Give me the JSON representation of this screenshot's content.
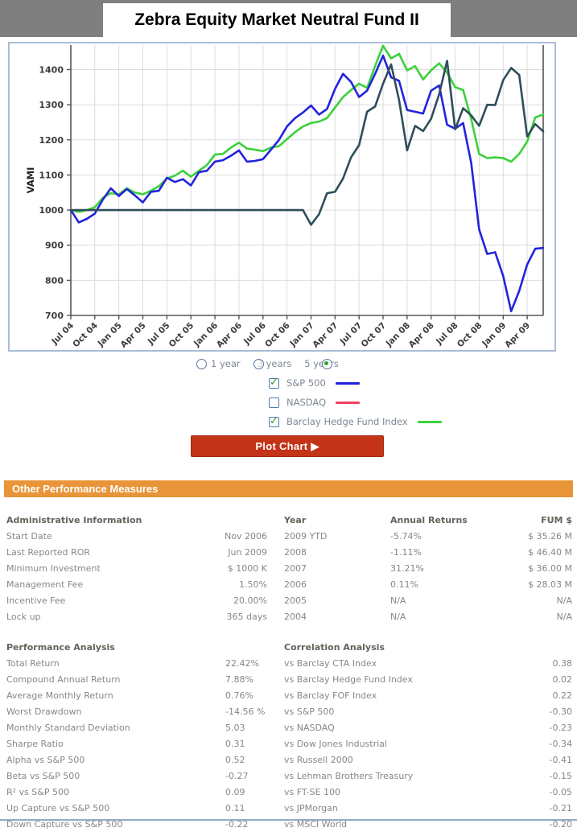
{
  "header": {
    "title": "Zebra Equity Market Neutral Fund II"
  },
  "chart_data": {
    "type": "line",
    "ylabel": "VAMI",
    "ylim": [
      700,
      1470
    ],
    "yticks": [
      700,
      800,
      900,
      1000,
      1100,
      1200,
      1300,
      1400
    ],
    "x_interval": "monthly",
    "x_start": "Jul 2004",
    "x_end": "Jun 2009",
    "x_tick_every": 3,
    "x_tick_labels": [
      "Jul 04",
      "Oct 04",
      "Jan 05",
      "Apr 05",
      "Jul 05",
      "Oct 05",
      "Jan 06",
      "Apr 06",
      "Jul 06",
      "Oct 06",
      "Jan 07",
      "Apr 07",
      "Jul 07",
      "Oct 07",
      "Jan 08",
      "Apr 08",
      "Jul 08",
      "Oct 08",
      "Jan 09",
      "Apr 09"
    ],
    "grid": true,
    "series": [
      {
        "name": "Barclay Hedge Fund Index",
        "color": "#3bd13b",
        "values": [
          1000,
          995,
          1000,
          1008,
          1035,
          1048,
          1045,
          1062,
          1050,
          1045,
          1055,
          1068,
          1090,
          1098,
          1112,
          1095,
          1112,
          1128,
          1158,
          1160,
          1178,
          1192,
          1175,
          1172,
          1168,
          1178,
          1182,
          1202,
          1222,
          1238,
          1248,
          1252,
          1262,
          1292,
          1322,
          1342,
          1360,
          1348,
          1410,
          1468,
          1432,
          1445,
          1398,
          1410,
          1372,
          1398,
          1418,
          1392,
          1350,
          1342,
          1260,
          1160,
          1148,
          1150,
          1148,
          1138,
          1160,
          1195,
          1264,
          1272
        ]
      },
      {
        "name": "S&P 500",
        "color": "#2323dd",
        "values": [
          1000,
          965,
          975,
          990,
          1030,
          1062,
          1040,
          1060,
          1042,
          1022,
          1052,
          1055,
          1092,
          1080,
          1088,
          1070,
          1108,
          1112,
          1138,
          1142,
          1155,
          1170,
          1138,
          1140,
          1145,
          1172,
          1200,
          1238,
          1262,
          1278,
          1298,
          1272,
          1288,
          1345,
          1388,
          1365,
          1322,
          1340,
          1388,
          1440,
          1378,
          1368,
          1285,
          1280,
          1275,
          1340,
          1355,
          1243,
          1232,
          1248,
          1135,
          945,
          875,
          880,
          812,
          712,
          770,
          845,
          890,
          892
        ]
      },
      {
        "name": "Zebra Equity Market Neutral Fund II",
        "color": "#2e4e5a",
        "values": [
          1000,
          1000,
          1000,
          1000,
          1000,
          1000,
          1000,
          1000,
          1000,
          1000,
          1000,
          1000,
          1000,
          1000,
          1000,
          1000,
          1000,
          1000,
          1000,
          1000,
          1000,
          1000,
          1000,
          1000,
          1000,
          1000,
          1000,
          1000,
          1000,
          1000,
          958,
          988,
          1048,
          1052,
          1090,
          1150,
          1185,
          1280,
          1295,
          1360,
          1415,
          1313,
          1170,
          1240,
          1225,
          1260,
          1330,
          1425,
          1230,
          1290,
          1270,
          1240,
          1300,
          1299,
          1370,
          1405,
          1385,
          1210,
          1245,
          1224
        ]
      }
    ]
  },
  "controls": {
    "period_options": [
      {
        "label": "1 year",
        "selected": false
      },
      {
        "label": "3 years",
        "selected": false
      },
      {
        "label": "5 years",
        "selected": true
      }
    ],
    "benchmarks": [
      {
        "label": "S&P 500",
        "checked": true,
        "line_color": "#2323dd"
      },
      {
        "label": "NASDAQ",
        "checked": false,
        "line_color": "#f5415f"
      },
      {
        "label": "Barclay Hedge Fund Index",
        "checked": true,
        "line_color": "#3bd13b"
      }
    ],
    "plot_button_label": "Plot Chart ▶"
  },
  "section_header": "Other Performance Measures",
  "admin": {
    "title": "Administrative Information",
    "rows": [
      {
        "label": "Start Date",
        "value": "Nov 2006"
      },
      {
        "label": "Last Reported ROR",
        "value": "Jun 2009"
      },
      {
        "label": "Minimum Investment",
        "value": "$ 1000 K"
      },
      {
        "label": "Management Fee",
        "value": "1.50%"
      },
      {
        "label": "Incentive Fee",
        "value": "20.00%"
      },
      {
        "label": "Lock up",
        "value": "365 days"
      }
    ]
  },
  "annual": {
    "col_year": "Year",
    "col_returns": "Annual Returns",
    "col_fum": "FUM $",
    "rows": [
      {
        "year": "2009 YTD",
        "ret": "-5.74%",
        "fum": "$ 35.26 M"
      },
      {
        "year": "2008",
        "ret": "-1.11%",
        "fum": "$ 46.40 M"
      },
      {
        "year": "2007",
        "ret": "31.21%",
        "fum": "$ 36.00 M"
      },
      {
        "year": "2006",
        "ret": "0.11%",
        "fum": "$ 28.03 M"
      },
      {
        "year": "2005",
        "ret": "N/A",
        "fum": "N/A"
      },
      {
        "year": "2004",
        "ret": "N/A",
        "fum": "N/A"
      }
    ]
  },
  "performance": {
    "title": "Performance Analysis",
    "rows": [
      {
        "label": "Total Return",
        "value": "22.42%"
      },
      {
        "label": "Compound Annual Return",
        "value": "7.88%"
      },
      {
        "label": "Average Monthly Return",
        "value": "0.76%"
      },
      {
        "label": "Worst Drawdown",
        "value": "-14.56 %"
      },
      {
        "label": "Monthly Standard Deviation",
        "value": "5.03"
      },
      {
        "label": "Sharpe Ratio",
        "value": "0.31"
      },
      {
        "label": "Alpha vs S&P 500",
        "value": "0.52"
      },
      {
        "label": "Beta vs S&P 500",
        "value": "-0.27"
      },
      {
        "label": "R² vs S&P 500",
        "value": "0.09"
      },
      {
        "label": "Up Capture vs S&P 500",
        "value": "0.11"
      },
      {
        "label": "Down Capture vs S&P 500",
        "value": "-0.22"
      }
    ]
  },
  "correlation": {
    "title": "Correlation Analysis",
    "rows": [
      {
        "label": "vs Barclay CTA Index",
        "value": "0.38"
      },
      {
        "label": "vs Barclay Hedge Fund Index",
        "value": "0.02"
      },
      {
        "label": "vs Barclay FOF Index",
        "value": "0.22"
      },
      {
        "label": "vs S&P 500",
        "value": "-0.30"
      },
      {
        "label": "vs NASDAQ",
        "value": "-0.23"
      },
      {
        "label": "vs Dow Jones Industrial",
        "value": "-0.34"
      },
      {
        "label": "vs Russell 2000",
        "value": "-0.41"
      },
      {
        "label": "vs Lehman Brothers Treasury",
        "value": "-0.15"
      },
      {
        "label": "vs FT-SE 100",
        "value": "-0.05"
      },
      {
        "label": "vs JPMorgan",
        "value": "-0.21"
      },
      {
        "label": "vs MSCI World",
        "value": "-0.20"
      }
    ]
  },
  "colors": {
    "topbar": "#7f7f7f",
    "section_header_bg": "#e89438",
    "plot_button_bg": "#c23317",
    "chart_border": "#a9bdd6",
    "sp500_line": "#2323dd",
    "nasdaq_line": "#f5415f",
    "barclay_line": "#3bd13b",
    "fund_line": "#2e4e5a"
  }
}
